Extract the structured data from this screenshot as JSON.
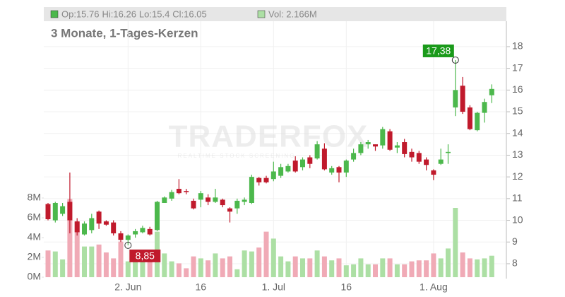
{
  "chart_data": {
    "type": "candlestick",
    "header": {
      "ohlc": [
        "Op:15.76",
        "Hi:16.26",
        "Lo:15.4",
        "Cl:16.05"
      ],
      "volume": "Vol: 2.166M"
    },
    "subtitle": "3 Monate, 1-Tages-Kerzen",
    "watermark": [
      "TRADERFOX",
      "REALTIME STOCK SCREENING"
    ],
    "categories": [
      null,
      null,
      null,
      null,
      null,
      null,
      null,
      null,
      null,
      null,
      null,
      "2. Jun",
      null,
      null,
      null,
      null,
      null,
      null,
      null,
      null,
      null,
      "16",
      null,
      null,
      null,
      null,
      null,
      null,
      null,
      null,
      null,
      "1. Jul",
      null,
      null,
      null,
      null,
      null,
      null,
      null,
      null,
      null,
      "16",
      null,
      null,
      null,
      null,
      null,
      null,
      null,
      null,
      null,
      null,
      null,
      "1. Aug",
      null,
      null,
      null,
      null,
      null,
      null,
      null,
      null
    ],
    "open": [
      10.75,
      10.0,
      10.3,
      10.85,
      9.95,
      9.35,
      9.55,
      10.4,
      9.95,
      9.9,
      9.4,
      9.1,
      9.35,
      9.45,
      9.6,
      9.55,
      10.8,
      11.0,
      11.45,
      11.35,
      10.9,
      10.95,
      11.05,
      10.85,
      10.95,
      10.55,
      10.55,
      10.85,
      10.8,
      11.95,
      11.95,
      11.9,
      12.05,
      12.25,
      12.75,
      12.45,
      12.9,
      12.85,
      13.3,
      12.2,
      12.45,
      12.2,
      12.8,
      13.1,
      13.5,
      13.5,
      13.45,
      14.1,
      13.35,
      13.6,
      13.15,
      13.1,
      12.8,
      12.3,
      12.6,
      13.1,
      15.2,
      16.2,
      15.2,
      14.15,
      14.95,
      15.76
    ],
    "high": [
      10.8,
      10.85,
      10.8,
      12.2,
      10.1,
      9.95,
      10.3,
      10.45,
      10.0,
      10.0,
      9.5,
      9.35,
      9.6,
      9.75,
      9.7,
      10.9,
      11.1,
      11.4,
      11.9,
      11.45,
      11.0,
      11.35,
      11.2,
      11.45,
      11.0,
      10.6,
      11.0,
      11.05,
      12.1,
      12.0,
      12.05,
      12.7,
      12.6,
      12.6,
      12.95,
      12.9,
      13.0,
      13.65,
      13.55,
      12.5,
      12.5,
      12.8,
      13.3,
      13.6,
      13.7,
      13.5,
      14.3,
      14.2,
      13.6,
      13.75,
      13.3,
      13.2,
      12.9,
      12.35,
      13.3,
      13.5,
      17.38,
      16.6,
      15.3,
      15.0,
      15.6,
      16.26
    ],
    "low": [
      10.0,
      9.9,
      10.2,
      9.4,
      9.3,
      9.3,
      9.4,
      9.6,
      9.75,
      9.3,
      9.0,
      8.85,
      9.2,
      9.4,
      9.3,
      9.5,
      10.8,
      10.9,
      11.2,
      11.2,
      10.5,
      10.6,
      10.7,
      10.8,
      10.6,
      9.9,
      10.3,
      10.7,
      10.75,
      11.6,
      11.7,
      11.8,
      11.95,
      12.2,
      12.2,
      12.3,
      12.4,
      12.8,
      12.3,
      12.1,
      11.75,
      12.0,
      12.7,
      13.0,
      13.3,
      13.2,
      13.3,
      13.2,
      13.1,
      12.9,
      12.7,
      12.6,
      12.3,
      11.85,
      12.55,
      12.6,
      14.8,
      14.9,
      14.15,
      14.1,
      14.5,
      15.4
    ],
    "close": [
      10.05,
      10.8,
      10.65,
      10.0,
      9.45,
      9.85,
      10.1,
      9.85,
      9.8,
      9.4,
      9.1,
      9.3,
      9.5,
      9.65,
      9.35,
      10.85,
      11.05,
      11.3,
      11.25,
      11.3,
      10.55,
      11.25,
      10.85,
      11.05,
      10.7,
      10.4,
      10.9,
      10.95,
      12.0,
      11.75,
      11.75,
      12.25,
      12.45,
      12.5,
      12.25,
      12.8,
      12.6,
      13.5,
      12.35,
      12.4,
      12.2,
      12.75,
      13.1,
      13.5,
      13.6,
      13.4,
      14.2,
      13.25,
      13.45,
      13.05,
      12.9,
      12.7,
      12.55,
      12.1,
      12.8,
      13.15,
      16.0,
      15.0,
      14.2,
      14.95,
      15.45,
      16.05
    ],
    "volume": [
      2.7,
      2.6,
      1.8,
      7.9,
      5.6,
      3.1,
      3.1,
      3.3,
      2.5,
      1.9,
      3.6,
      1.6,
      1.6,
      1.7,
      2.0,
      4.6,
      2.4,
      1.6,
      1.4,
      0.9,
      2.1,
      1.9,
      1.7,
      2.4,
      1.9,
      2.1,
      0.8,
      2.7,
      2.6,
      3.0,
      4.6,
      3.9,
      2.1,
      1.6,
      2.1,
      1.9,
      1.9,
      2.7,
      2.1,
      1.7,
      1.9,
      1.2,
      1.3,
      1.9,
      1.3,
      1.3,
      1.9,
      1.9,
      1.3,
      1.3,
      1.6,
      1.7,
      1.7,
      2.4,
      1.9,
      2.9,
      7.0,
      2.5,
      1.9,
      1.8,
      1.9,
      2.166
    ],
    "up_color": "#4cb84c",
    "down_color": "#c01a2c",
    "up_volume_color": "#acdfa4",
    "down_volume_color": "#f0aab6",
    "ylim": [
      7.38,
      19.17
    ],
    "yticks": [
      8,
      9,
      10,
      11,
      12,
      13,
      14,
      15,
      16,
      17,
      18
    ],
    "y2lim": [
      0,
      25.86
    ],
    "y2ticks": [
      {
        "value": 0,
        "label": "0M"
      },
      {
        "value": 2,
        "label": "2M"
      },
      {
        "value": 4,
        "label": "4M"
      },
      {
        "value": 6,
        "label": "6M"
      },
      {
        "value": 8,
        "label": "8M"
      }
    ],
    "annotations": [
      {
        "index": 56,
        "value": 17.38,
        "label": "17,38",
        "color": "#1a9a1a"
      },
      {
        "index": 11,
        "value": 8.85,
        "label": "8,85",
        "color": "#c01a2c"
      }
    ],
    "grid": true
  }
}
